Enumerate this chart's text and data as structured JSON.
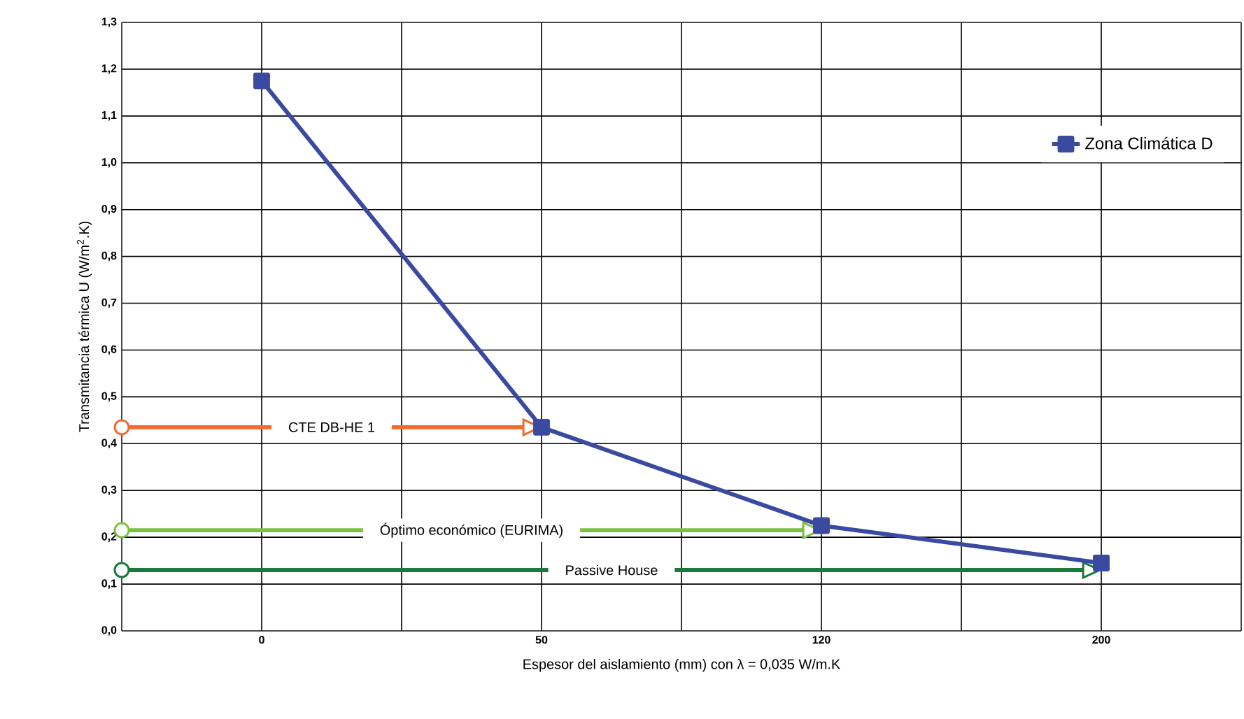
{
  "chart_data": {
    "type": "line",
    "xlabel": "Espesor del aislamiento (mm) con λ = 0,035 W/m.K",
    "ylabel": "Transmitancia térmica U (W/m$^{2}$.K)",
    "categories": [
      "0",
      "50",
      "120",
      "200"
    ],
    "series": [
      {
        "name": "Zona Climática D",
        "color": "#3a4aa0",
        "values": [
          1.175,
          0.435,
          0.225,
          0.145
        ]
      }
    ],
    "ylim": [
      0,
      1.3
    ],
    "yticks": [
      {
        "value": 0,
        "label": "0,0"
      },
      {
        "value": 0.1,
        "label": "0,1"
      },
      {
        "value": 0.2,
        "label": "0,2"
      },
      {
        "value": 0.3,
        "label": "0,3"
      },
      {
        "value": 0.4,
        "label": "0,4"
      },
      {
        "value": 0.5,
        "label": "0,5"
      },
      {
        "value": 0.6,
        "label": "0,6"
      },
      {
        "value": 0.7,
        "label": "0,7"
      },
      {
        "value": 0.8,
        "label": "0,8"
      },
      {
        "value": 0.9,
        "label": "0,9"
      },
      {
        "value": 1.0,
        "label": "1,0"
      },
      {
        "value": 1.1,
        "label": "1,1"
      },
      {
        "value": 1.2,
        "label": "1,2"
      },
      {
        "value": 1.3,
        "label": "1,3"
      }
    ],
    "ref_lines": [
      {
        "axis": "y",
        "value": 0.435,
        "label": "CTE DB-HE 1",
        "color": "#f26a2e"
      },
      {
        "axis": "y",
        "value": 0.215,
        "label": "Óptimo económico (EURIMA)",
        "color": "#7ac143"
      },
      {
        "axis": "y",
        "value": 0.13,
        "label": "Passive House",
        "color": "#1a7a3a"
      }
    ],
    "grid": true,
    "legend": "top right",
    "marker": "square",
    "line_style": "solid"
  }
}
